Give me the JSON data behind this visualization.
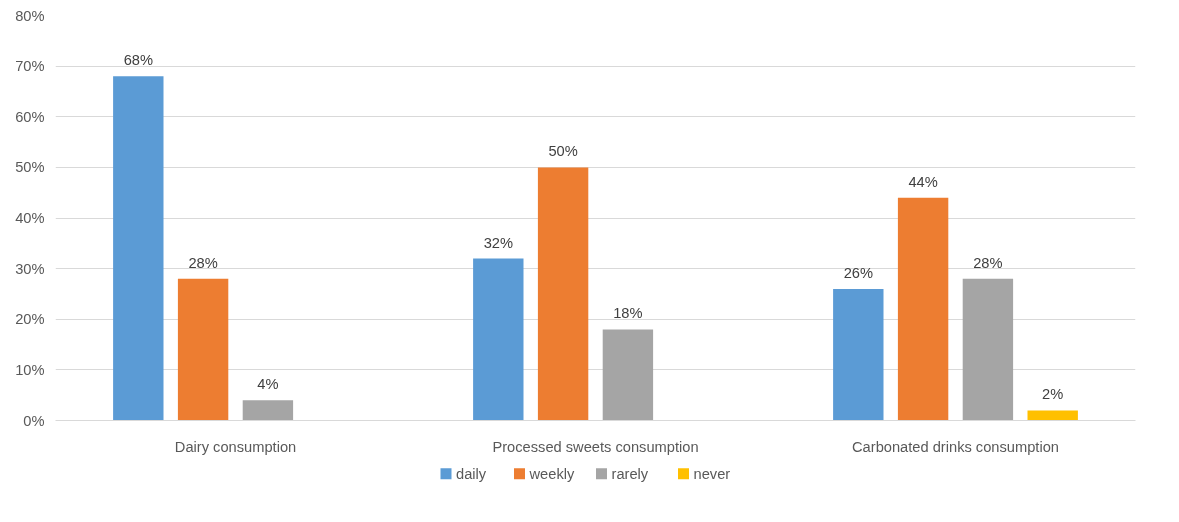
{
  "chart_data": {
    "type": "bar",
    "categories": [
      "Dairy consumption",
      "Processed sweets consumption",
      "Carbonated drinks consumption"
    ],
    "series": [
      {
        "name": "daily",
        "color": "#5b9bd5",
        "values": [
          68,
          32,
          26
        ],
        "value_labels": [
          "68%",
          "32%",
          "26%"
        ]
      },
      {
        "name": "weekly",
        "color": "#ed7d31",
        "values": [
          28,
          50,
          44
        ],
        "value_labels": [
          "28%",
          "50%",
          "44%"
        ]
      },
      {
        "name": "rarely",
        "color": "#a5a5a5",
        "values": [
          4,
          18,
          28
        ],
        "value_labels": [
          "4%",
          "18%",
          "28%"
        ]
      },
      {
        "name": "never",
        "color": "#ffc000",
        "values": [
          null,
          null,
          2
        ],
        "value_labels": [
          null,
          null,
          "2%"
        ]
      }
    ],
    "ylim": [
      0,
      80
    ],
    "yticks": [
      {
        "value": 0,
        "label": "0%"
      },
      {
        "value": 10,
        "label": "10%"
      },
      {
        "value": 20,
        "label": "20%"
      },
      {
        "value": 30,
        "label": "30%"
      },
      {
        "value": 40,
        "label": "40%"
      },
      {
        "value": 50,
        "label": "50%"
      },
      {
        "value": 60,
        "label": "60%"
      },
      {
        "value": 70,
        "label": "70%"
      },
      {
        "value": 80,
        "label": "80%"
      }
    ],
    "grid": "y",
    "legend": "bottom"
  }
}
